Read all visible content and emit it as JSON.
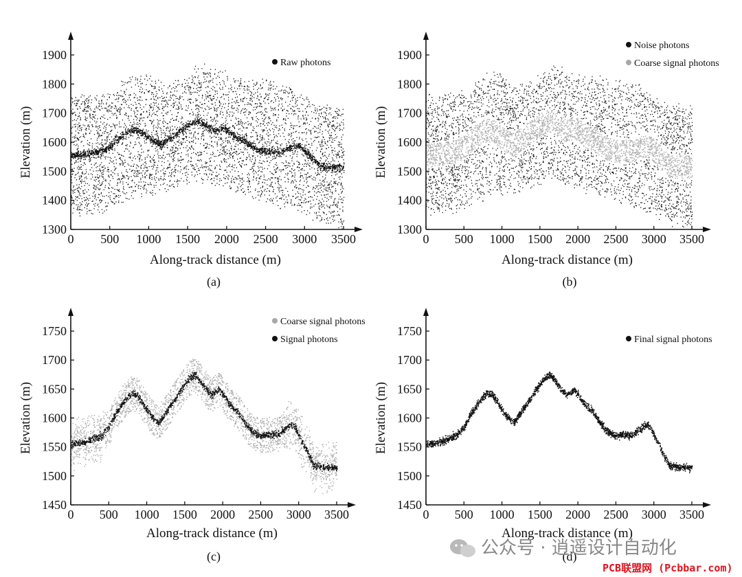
{
  "chart_data": [
    {
      "type": "scatter",
      "panel_label": "(a)",
      "xlabel": "Along-track distance (m)",
      "ylabel": "Elevation (m)",
      "xlim": [
        0,
        3500
      ],
      "ylim": [
        1300,
        1900
      ],
      "xticks": [
        0,
        500,
        1000,
        1500,
        2000,
        2500,
        3000,
        3500
      ],
      "yticks": [
        1300,
        1400,
        1500,
        1600,
        1700,
        1800,
        1900
      ],
      "legend": [
        "Raw photons"
      ],
      "legend_position": "top-right",
      "series": [
        {
          "name": "Raw photons",
          "color": "#111111",
          "role": "noise_cloud",
          "envelope_top": [
            [
              0,
              1750
            ],
            [
              400,
              1760
            ],
            [
              500,
              1770
            ],
            [
              800,
              1830
            ],
            [
              900,
              1840
            ],
            [
              1200,
              1800
            ],
            [
              1500,
              1820
            ],
            [
              1600,
              1855
            ],
            [
              1700,
              1860
            ],
            [
              2000,
              1830
            ],
            [
              2400,
              1810
            ],
            [
              2800,
              1790
            ],
            [
              3200,
              1720
            ],
            [
              3500,
              1710
            ]
          ],
          "envelope_bottom": [
            [
              0,
              1360
            ],
            [
              400,
              1370
            ],
            [
              800,
              1420
            ],
            [
              1200,
              1440
            ],
            [
              1600,
              1480
            ],
            [
              2000,
              1450
            ],
            [
              2400,
              1410
            ],
            [
              2800,
              1380
            ],
            [
              3200,
              1330
            ],
            [
              3500,
              1320
            ]
          ]
        },
        {
          "name": "Raw photons",
          "color": "#111111",
          "role": "surface"
        }
      ]
    },
    {
      "type": "scatter",
      "panel_label": "(b)",
      "xlabel": "Along-track distance (m)",
      "ylabel": "Elevation (m)",
      "xlim": [
        0,
        3500
      ],
      "ylim": [
        1300,
        1900
      ],
      "xticks": [
        0,
        500,
        1000,
        1500,
        2000,
        2500,
        3000,
        3500
      ],
      "yticks": [
        1300,
        1400,
        1500,
        1600,
        1700,
        1800,
        1900
      ],
      "legend": [
        "Noise photons",
        "Coarse signal photons"
      ],
      "legend_position": "top-right",
      "series": [
        {
          "name": "Noise photons",
          "color": "#111111",
          "role": "noise_cloud"
        },
        {
          "name": "Coarse signal photons",
          "color": "#a8a8a8",
          "role": "band",
          "band_width": 40
        }
      ]
    },
    {
      "type": "scatter",
      "panel_label": "(c)",
      "xlabel": "Along-track distance (m)",
      "ylabel": "Elevation (m)",
      "xlim": [
        0,
        3500
      ],
      "ylim": [
        1450,
        1750
      ],
      "xticks": [
        0,
        500,
        1000,
        1500,
        2000,
        2500,
        3000,
        3500
      ],
      "yticks": [
        1450,
        1500,
        1550,
        1600,
        1650,
        1700,
        1750
      ],
      "legend": [
        "Coarse signal photons",
        "Signal photons"
      ],
      "legend_position": "top-right",
      "series": [
        {
          "name": "Coarse signal photons",
          "color": "#a8a8a8",
          "role": "band",
          "band_width": 30
        },
        {
          "name": "Signal photons",
          "color": "#111111",
          "role": "surface"
        }
      ]
    },
    {
      "type": "scatter",
      "panel_label": "(d)",
      "xlabel": "Along-track distance (m)",
      "ylabel": "Elevation (m)",
      "xlim": [
        0,
        3500
      ],
      "ylim": [
        1450,
        1750
      ],
      "xticks": [
        0,
        500,
        1000,
        1500,
        2000,
        2500,
        3000,
        3500
      ],
      "yticks": [
        1450,
        1500,
        1550,
        1600,
        1650,
        1700,
        1750
      ],
      "legend": [
        "Final signal photons"
      ],
      "legend_position": "top-right",
      "series": [
        {
          "name": "Final signal photons",
          "color": "#111111",
          "role": "surface"
        }
      ]
    }
  ],
  "terrain_profile": {
    "x": [
      0,
      200,
      400,
      500,
      600,
      700,
      800,
      870,
      950,
      1050,
      1150,
      1250,
      1350,
      1450,
      1550,
      1630,
      1700,
      1780,
      1850,
      1950,
      2000,
      2100,
      2200,
      2300,
      2400,
      2500,
      2600,
      2700,
      2800,
      2900,
      2950,
      3000,
      3100,
      3200,
      3300,
      3400,
      3500
    ],
    "y": [
      1555,
      1560,
      1570,
      1585,
      1610,
      1630,
      1643,
      1640,
      1625,
      1605,
      1592,
      1610,
      1630,
      1650,
      1668,
      1675,
      1665,
      1650,
      1640,
      1650,
      1642,
      1622,
      1610,
      1590,
      1575,
      1570,
      1572,
      1570,
      1580,
      1590,
      1585,
      1570,
      1545,
      1518,
      1516,
      1515,
      1515
    ]
  },
  "watermark": {
    "wechat_text": "公众号 · 逍遥设计自动化",
    "source_text": "PCB联盟网 (Pcbbar.com)"
  }
}
